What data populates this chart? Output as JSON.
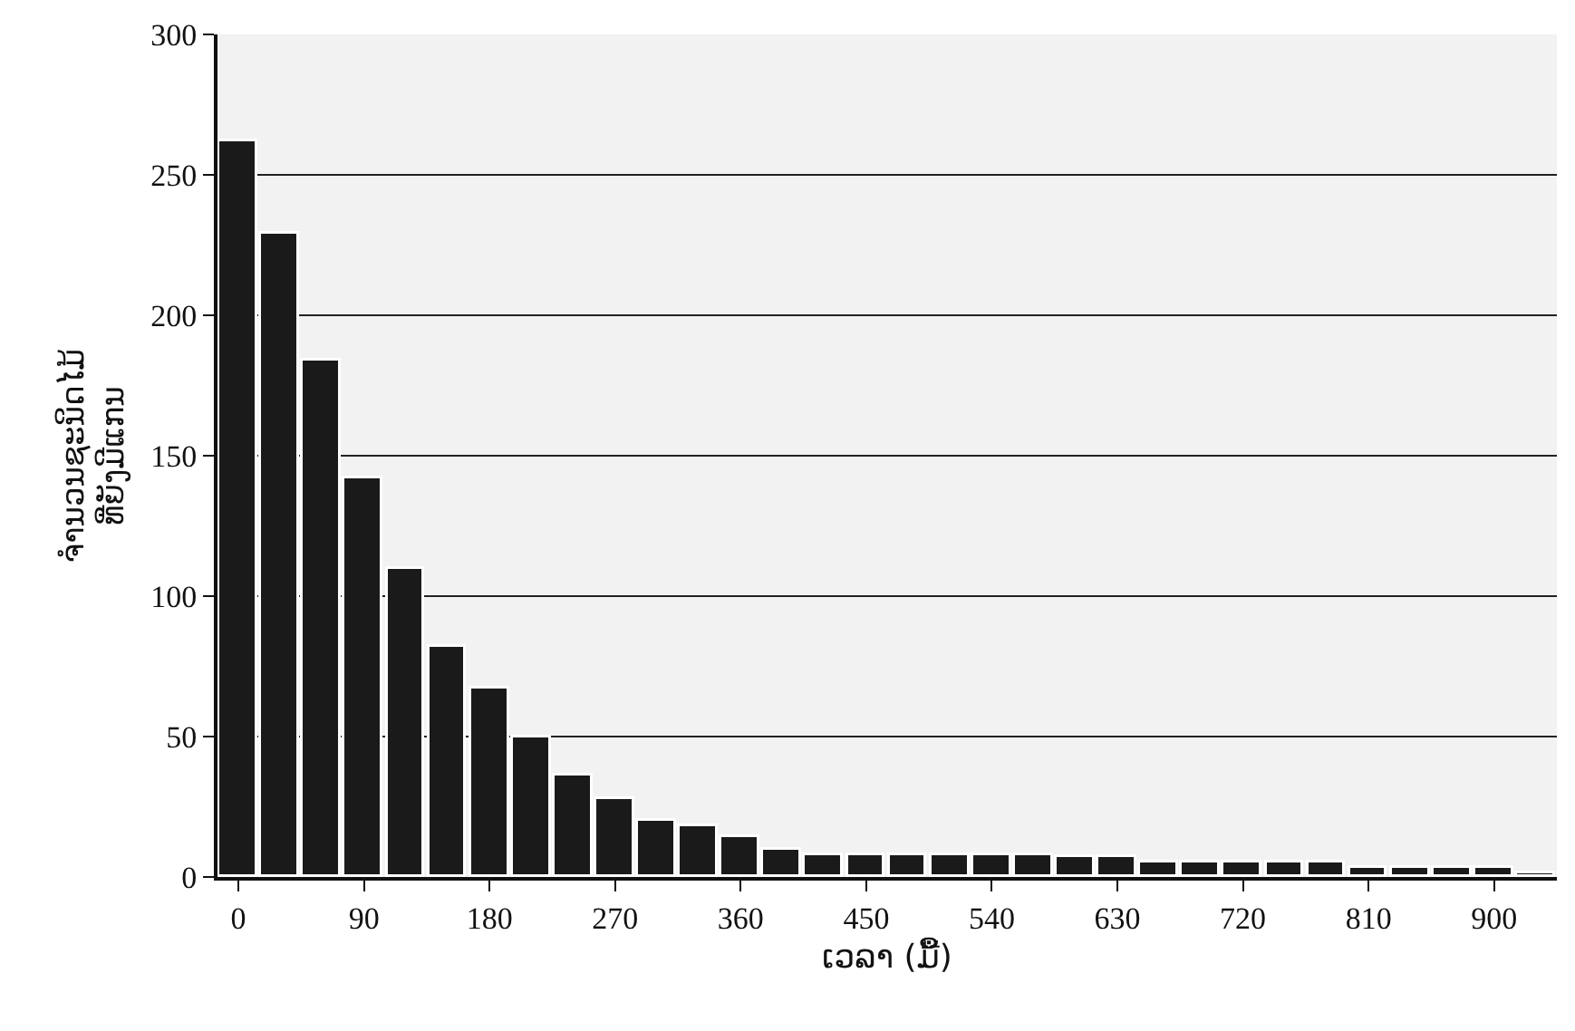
{
  "chart_data": {
    "type": "bar",
    "xlabel": "ເວລາ (ມື້)",
    "ylabel": "ຈຳນວນຊະນິດໄມ້\nທີ່ຍັງມີແກນ",
    "x": [
      0,
      30,
      60,
      90,
      120,
      150,
      180,
      210,
      240,
      270,
      300,
      330,
      360,
      390,
      420,
      450,
      480,
      510,
      540,
      570,
      600,
      630,
      660,
      690,
      720,
      750,
      780,
      810,
      840,
      870,
      900,
      930
    ],
    "values": [
      262,
      229,
      184,
      142,
      110,
      82,
      67,
      50,
      36,
      28,
      20,
      18,
      14,
      10,
      8,
      8,
      8,
      8,
      8,
      8,
      7,
      7,
      5,
      5,
      5,
      5,
      5,
      3,
      3,
      3,
      3,
      1
    ],
    "color": "#1a1a1a",
    "xlim": [
      -15,
      945
    ],
    "xticks": [
      0,
      90,
      180,
      270,
      360,
      450,
      540,
      630,
      720,
      810,
      900
    ],
    "ylim": [
      0,
      300
    ],
    "yticks": [
      0,
      50,
      100,
      150,
      200,
      250,
      300
    ],
    "grid": "y"
  }
}
